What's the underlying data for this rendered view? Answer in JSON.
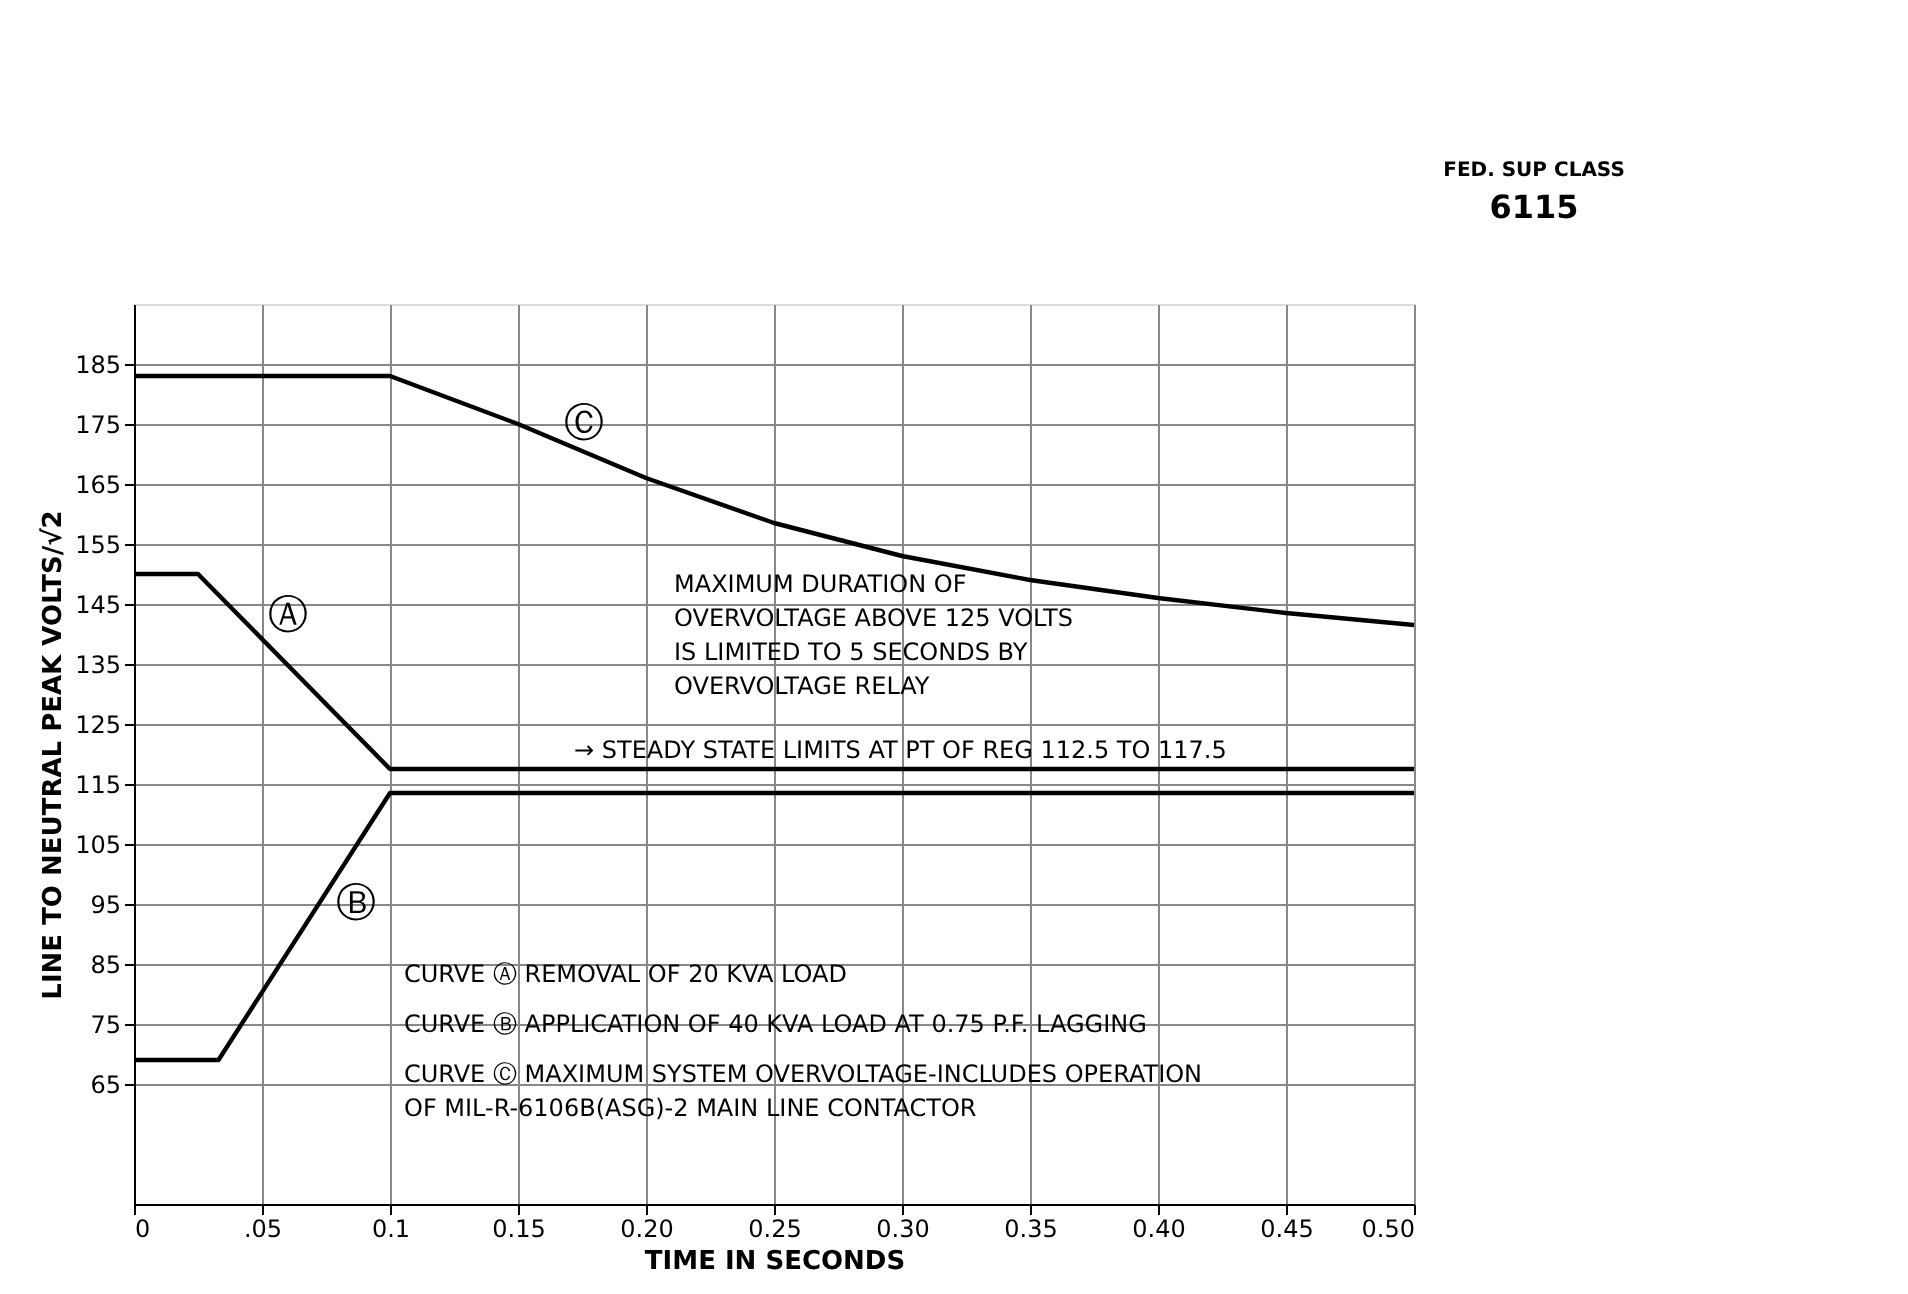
{
  "chart_data": {
    "type": "line",
    "xlabel": "TIME IN SECONDS",
    "ylabel": "LINE TO NEUTRAL PEAK VOLTS/√2",
    "xlim": [
      0,
      0.5
    ],
    "ylim": [
      45,
      195
    ],
    "xticks": [
      0,
      {
        "value": 0.05,
        "label": ".05"
      },
      0.1,
      0.15,
      {
        "value": 0.2,
        "label": "0.20"
      },
      0.25,
      {
        "value": 0.3,
        "label": "0.30"
      },
      0.35,
      {
        "value": 0.4,
        "label": "0.40"
      },
      0.45,
      {
        "value": 0.5,
        "label": "0.50"
      }
    ],
    "yticks": [
      65,
      75,
      85,
      95,
      105,
      115,
      125,
      135,
      145,
      155,
      165,
      175,
      185
    ],
    "grid": true,
    "marker": "none",
    "line_style": "solid",
    "series": [
      {
        "color": "#000000",
        "x": [
          0,
          0.025,
          0.1,
          0.5
        ],
        "values": [
          150,
          150,
          117.5,
          117.5
        ]
      },
      {
        "color": "#000000",
        "x": [
          0,
          0.033,
          0.1,
          0.5
        ],
        "values": [
          69,
          69,
          113.5,
          113.5
        ]
      },
      {
        "color": "#000000",
        "x": [
          0,
          0.1,
          0.15,
          0.2,
          0.25,
          0.3,
          0.35,
          0.4,
          0.45,
          0.5
        ],
        "values": [
          183,
          183,
          175,
          166,
          158.5,
          153,
          149,
          146,
          143.5,
          141.5
        ]
      }
    ],
    "annotations": [
      "Ⓐ",
      "Ⓑ",
      "Ⓒ",
      "MAXIMUM DURATION OF\nOVERVOLTAGE ABOVE 125 VOLTS\nIS LIMITED TO 5 SECONDS BY\nOVERVOLTAGE RELAY",
      "→ STEADY STATE LIMITS AT PT OF REG 112.5 TO 117.5",
      "CURVE  Ⓐ   REMOVAL OF 20 KVA LOAD",
      "CURVE  Ⓑ   APPLICATION OF 40 KVA LOAD AT 0.75 P.F. LAGGING",
      "CURVE  Ⓒ   MAXIMUM SYSTEM OVERVOLTAGE-INCLUDES OPERATION\n                 OF MIL-R-6106B(ASG)-2 MAIN LINE CONTACTOR",
      "FED. SUP CLASS",
      "6115"
    ]
  }
}
